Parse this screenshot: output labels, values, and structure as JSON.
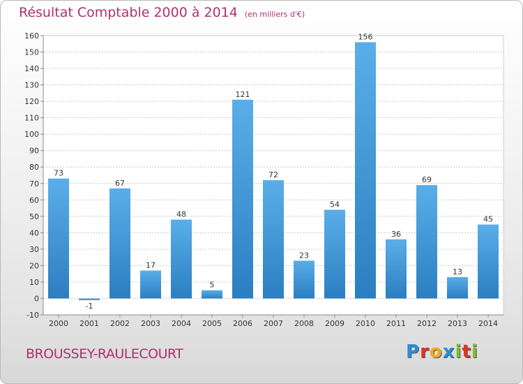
{
  "header": {
    "title": "Résultat Comptable 2000 à 2014",
    "subtitle": "(en milliers d'€)"
  },
  "footer": {
    "commune": "BROUSSEY-RAULECOURT",
    "logo": "Proxiti",
    "logo_letters": [
      {
        "ch": "P",
        "color": "#2a8fd6"
      },
      {
        "ch": "r",
        "color": "#e0331f"
      },
      {
        "ch": "o",
        "color": "#f0a81e"
      },
      {
        "ch": "x",
        "color": "#2a8fd6"
      },
      {
        "ch": "i",
        "color": "#7cbf2d"
      },
      {
        "ch": "t",
        "color": "#e0331f"
      },
      {
        "ch": "i",
        "color": "#7cbf2d"
      }
    ]
  },
  "colors": {
    "bar_top": "#5aaee8",
    "bar_bottom": "#2b7fc1",
    "accent": "#b03070"
  },
  "chart_data": {
    "type": "bar",
    "title": "Résultat Comptable 2000 à 2014",
    "subtitle": "(en milliers d'€)",
    "xlabel": "",
    "ylabel": "",
    "categories": [
      "2000",
      "2001",
      "2002",
      "2003",
      "2004",
      "2005",
      "2006",
      "2007",
      "2008",
      "2009",
      "2010",
      "2011",
      "2012",
      "2013",
      "2014"
    ],
    "values": [
      73,
      -1,
      67,
      17,
      48,
      5,
      121,
      72,
      23,
      54,
      156,
      36,
      69,
      13,
      45
    ],
    "ylim": [
      -10,
      160
    ],
    "yticks": [
      -10,
      0,
      10,
      20,
      30,
      40,
      50,
      60,
      70,
      80,
      90,
      100,
      110,
      120,
      130,
      140,
      150,
      160
    ],
    "grid": true
  }
}
